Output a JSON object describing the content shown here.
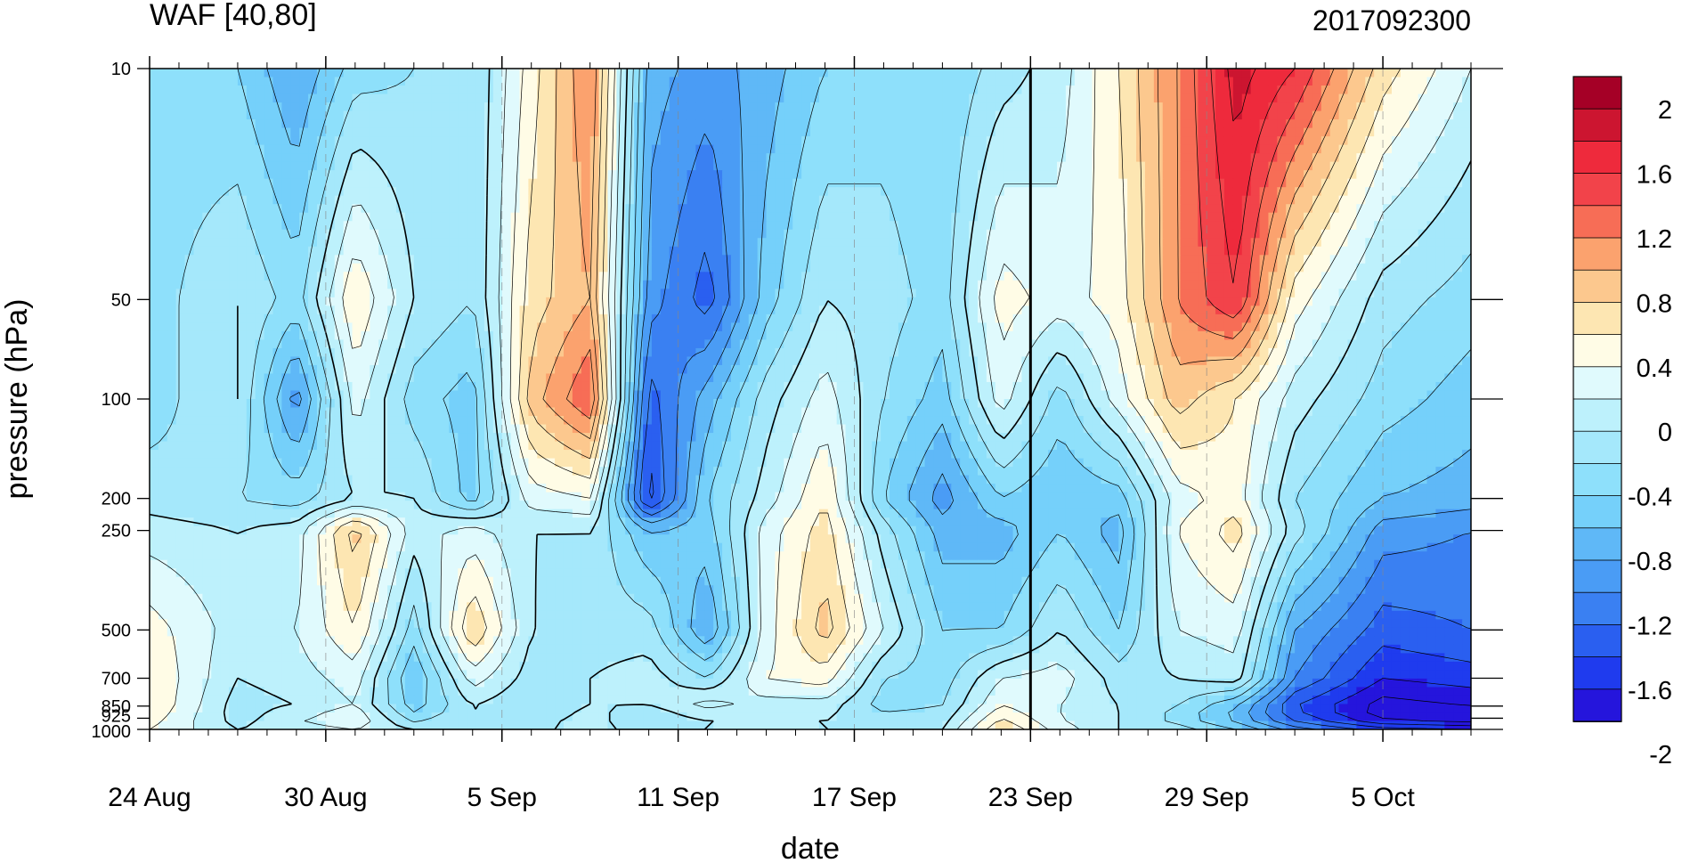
{
  "chart_data": {
    "type": "heatmap",
    "title": "WAF [40,80]",
    "subtitle": "2017092300",
    "xlabel": "date",
    "ylabel": "pressure (hPa)",
    "x_ticks": [
      "24 Aug",
      "30 Aug",
      "5 Sep",
      "11 Sep",
      "17 Sep",
      "23 Sep",
      "29 Sep",
      "5 Oct"
    ],
    "y_ticks": [
      "10",
      "50",
      "100",
      "200",
      "250",
      "500",
      "700",
      "850",
      "925",
      "1000"
    ],
    "y_scale": "log",
    "ylim": [
      1000,
      10
    ],
    "xlim": [
      "2017-08-24",
      "2017-10-08"
    ],
    "reference_line": "2017-09-23",
    "colorbar": {
      "labels": [
        "2",
        "1.6",
        "1.2",
        "0.8",
        "0.4",
        "0",
        "-0.4",
        "-0.8",
        "-1.2",
        "-1.6",
        "-2"
      ],
      "levels": [
        2.2,
        2.0,
        1.8,
        1.6,
        1.4,
        1.2,
        1.0,
        0.8,
        0.6,
        0.4,
        0.2,
        0.0,
        -0.2,
        -0.4,
        -0.6,
        -0.8,
        -1.0,
        -1.2,
        -1.4,
        -1.6,
        -1.8,
        -2.0,
        -2.2
      ],
      "colors": [
        "#a50026",
        "#cc1530",
        "#ee2a3c",
        "#f2434a",
        "#f76d56",
        "#fba26e",
        "#fcc88e",
        "#fde6b2",
        "#fffce6",
        "#e0fafd",
        "#bdf1fc",
        "#a5e8fb",
        "#8ee0fb",
        "#75d0fa",
        "#5fb8f7",
        "#4a9cf5",
        "#3a80f2",
        "#2a5ff0",
        "#1f3bee",
        "#2515dc"
      ]
    },
    "column_profiles": [
      {
        "date": "2017-08-24",
        "values": [
          -0.3,
          -0.3,
          -0.3,
          -0.1,
          0.1,
          0.5,
          0.6,
          0.6,
          0.5,
          0.4
        ]
      },
      {
        "date": "2017-08-27",
        "values": [
          -0.4,
          0.0,
          0.0,
          -0.2,
          0.0,
          0.1,
          0.0,
          -0.1,
          -0.1,
          0.0
        ]
      },
      {
        "date": "2017-08-29",
        "values": [
          -0.8,
          -0.3,
          -0.9,
          -0.3,
          0.1,
          0.2,
          0.1,
          0.0,
          0.2,
          0.1
        ]
      },
      {
        "date": "2017-08-31",
        "values": [
          -0.3,
          0.6,
          0.3,
          0.0,
          0.9,
          0.6,
          0.3,
          0.2,
          0.4,
          0.2
        ]
      },
      {
        "date": "2017-09-02",
        "values": [
          -0.2,
          0.0,
          -0.3,
          0.0,
          0.1,
          -0.3,
          -0.6,
          -0.5,
          -0.3,
          0.0
        ]
      },
      {
        "date": "2017-09-04",
        "values": [
          -0.2,
          -0.2,
          -0.5,
          -0.5,
          0.3,
          0.8,
          0.3,
          0.0,
          0.0,
          0.0
        ]
      },
      {
        "date": "2017-09-06",
        "values": [
          0.5,
          0.7,
          0.9,
          0.3,
          0.0,
          0.0,
          -0.1,
          -0.2,
          -0.1,
          0.0
        ]
      },
      {
        "date": "2017-09-08",
        "values": [
          1.2,
          1.0,
          1.4,
          0.4,
          0.0,
          -0.1,
          0.0,
          0.0,
          0.1,
          0.0
        ]
      },
      {
        "date": "2017-09-10",
        "values": [
          -0.7,
          -0.9,
          -1.3,
          -1.5,
          -0.6,
          -0.1,
          0.1,
          0.0,
          -0.2,
          0.0
        ]
      },
      {
        "date": "2017-09-12",
        "values": [
          -0.9,
          -1.3,
          -0.7,
          -0.4,
          -0.5,
          -0.8,
          -0.2,
          0.3,
          0.0,
          0.0
        ]
      },
      {
        "date": "2017-09-14",
        "values": [
          -0.7,
          -0.5,
          -0.1,
          0.1,
          0.3,
          0.3,
          0.4,
          0.1,
          0.0,
          0.0
        ]
      },
      {
        "date": "2017-09-16",
        "values": [
          -0.4,
          0.0,
          0.3,
          0.6,
          0.7,
          0.9,
          0.5,
          0.1,
          0.0,
          0.0
        ]
      },
      {
        "date": "2017-09-18",
        "values": [
          -0.3,
          -0.1,
          -0.2,
          -0.4,
          -0.1,
          0.2,
          -0.2,
          -0.3,
          -0.1,
          0.0
        ]
      },
      {
        "date": "2017-09-20",
        "values": [
          -0.4,
          -0.3,
          -0.5,
          -0.9,
          -0.7,
          -0.4,
          -0.3,
          -0.2,
          -0.1,
          0.0
        ]
      },
      {
        "date": "2017-09-22",
        "values": [
          -0.1,
          0.5,
          0.3,
          -0.4,
          -0.7,
          -0.4,
          0.2,
          0.4,
          0.6,
          0.8
        ]
      },
      {
        "date": "2017-09-24",
        "values": [
          0.1,
          0.3,
          -0.3,
          -0.6,
          -0.4,
          0.0,
          0.3,
          0.2,
          0.2,
          0.3
        ]
      },
      {
        "date": "2017-09-26",
        "values": [
          0.6,
          0.5,
          0.3,
          -0.5,
          -0.7,
          -0.4,
          -0.1,
          0.0,
          0.0,
          0.0
        ]
      },
      {
        "date": "2017-09-28",
        "values": [
          1.2,
          1.2,
          0.9,
          0.3,
          0.4,
          0.2,
          0.0,
          -0.2,
          -0.3,
          -0.1
        ]
      },
      {
        "date": "2017-09-30",
        "values": [
          1.9,
          1.6,
          0.6,
          0.5,
          0.7,
          0.3,
          0.1,
          -0.6,
          -0.7,
          -0.4
        ]
      },
      {
        "date": "2017-10-02",
        "values": [
          1.6,
          0.5,
          0.1,
          -0.2,
          -0.1,
          -0.8,
          -1.0,
          -1.4,
          -1.3,
          -0.9
        ]
      },
      {
        "date": "2017-10-05",
        "values": [
          0.7,
          -0.1,
          -0.3,
          -0.6,
          -0.9,
          -1.3,
          -1.6,
          -1.9,
          -1.9,
          -1.3
        ]
      },
      {
        "date": "2017-10-08",
        "values": [
          0.2,
          -0.3,
          -0.5,
          -0.7,
          -1.0,
          -1.2,
          -1.5,
          -1.8,
          -2.0,
          -1.4
        ]
      }
    ]
  }
}
